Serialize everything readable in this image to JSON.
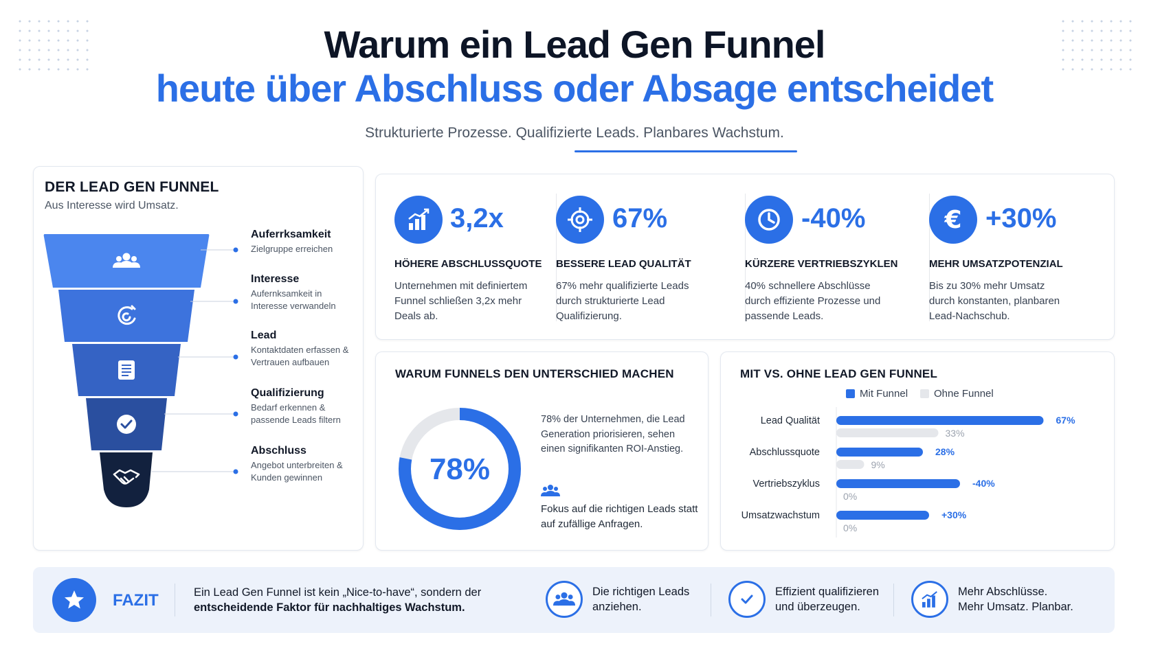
{
  "header": {
    "title_line1": "Warum ein Lead Gen Funnel",
    "title_line2": "heute über Abschluss oder Absage entscheidet",
    "subtitle": "Strukturierte Prozesse. Qualifizierte Leads. Planbares Wachstum."
  },
  "colors": {
    "accent": "#2b6fe6",
    "dark": "#0d1526",
    "funnel": [
      "#4b86ee",
      "#3d73dd",
      "#3563c4",
      "#2a4f9f",
      "#12213e"
    ],
    "bar_gray": "#e5e7eb"
  },
  "funnel": {
    "title": "DER LEAD GEN FUNNEL",
    "subtitle": "Aus Interesse wird Umsatz.",
    "stages": [
      {
        "label": "Auferrksamkeit",
        "desc": "Zielgruppe erreichen",
        "icon": "people-icon"
      },
      {
        "label": "Interesse",
        "desc": "Aufernksamkeit in Interesse verwandeln",
        "icon": "magnet-icon"
      },
      {
        "label": "Lead",
        "desc": "Kontaktdaten erfassen & Vertrauen aufbauen",
        "icon": "form-icon"
      },
      {
        "label": "Qualifizierung",
        "desc": "Bedarf erkennen & passende Leads filtern",
        "icon": "check-icon"
      },
      {
        "label": "Abschluss",
        "desc": "Angebot unterbreiten & Kunden gewinnen",
        "icon": "handshake-icon"
      }
    ]
  },
  "stats": [
    {
      "value": "3,2x",
      "title": "HÖHERE ABSCHLUSSQUOTE",
      "desc": "Unternehmen mit definiertem Funnel schließen 3,2x mehr Deals ab.",
      "icon": "growth-chart-icon"
    },
    {
      "value": "67%",
      "title": "BESSERE LEAD QUALITÄT",
      "desc": "67% mehr qualifizierte Leads durch strukturierte Lead Qualifizierung.",
      "icon": "target-icon"
    },
    {
      "value": "-40%",
      "title": "KÜRZERE VERTRIEBSZYKLEN",
      "desc": "40% schnellere Abschlüsse durch effiziente Prozesse und passende Leads.",
      "icon": "clock-icon"
    },
    {
      "value": "+30%",
      "title": "MEHR UMSATZPOTENZIAL",
      "desc": "Bis zu 30% mehr Umsatz durch konstanten, planbaren Lead-Nachschub.",
      "icon": "euro-icon"
    }
  ],
  "why": {
    "title": "WARUM FUNNELS DEN UNTERSCHIED MACHEN",
    "donut_label": "78%",
    "donut_value": 78,
    "text": "78% der Unternehmen, die Lead Generation priorisieren, sehen einen signifikanten ROI-Anstieg.",
    "focus": "Fokus auf die richtigen Leads statt auf zufällige Anfragen."
  },
  "compare": {
    "title": "MIT VS. OHNE LEAD GEN FUNNEL",
    "legend_with": "Mit Funnel",
    "legend_without": "Ohne Funnel"
  },
  "chart_data": {
    "type": "bar",
    "orientation": "horizontal",
    "categories": [
      "Lead Qualität",
      "Abschlussquote",
      "Vertriebszyklus",
      "Umsatzwachstum"
    ],
    "series": [
      {
        "name": "Mit Funnel",
        "values": [
          67,
          28,
          40,
          30
        ],
        "labels": [
          "67%",
          "28%",
          "-40%",
          "+30%"
        ]
      },
      {
        "name": "Ohne Funnel",
        "values": [
          33,
          9,
          0,
          0
        ],
        "labels": [
          "33%",
          "9%",
          "0%",
          "0%"
        ]
      }
    ]
  },
  "fazit": {
    "label": "FAZIT",
    "text_plain": "Ein Lead Gen Funnel ist kein „Nice-to-have“, sondern der",
    "text_bold": "entscheidende Faktor für nachhaltiges Wachstum.",
    "items": [
      {
        "line1": "Die richtigen Leads",
        "line2": "anziehen.",
        "icon": "people-icon"
      },
      {
        "line1": "Effizient qualifizieren",
        "line2": "und überzeugen.",
        "icon": "check-icon"
      },
      {
        "line1": "Mehr Abschlüsse.",
        "line2": "Mehr Umsatz. Planbar.",
        "icon": "growth-chart-icon"
      }
    ]
  }
}
